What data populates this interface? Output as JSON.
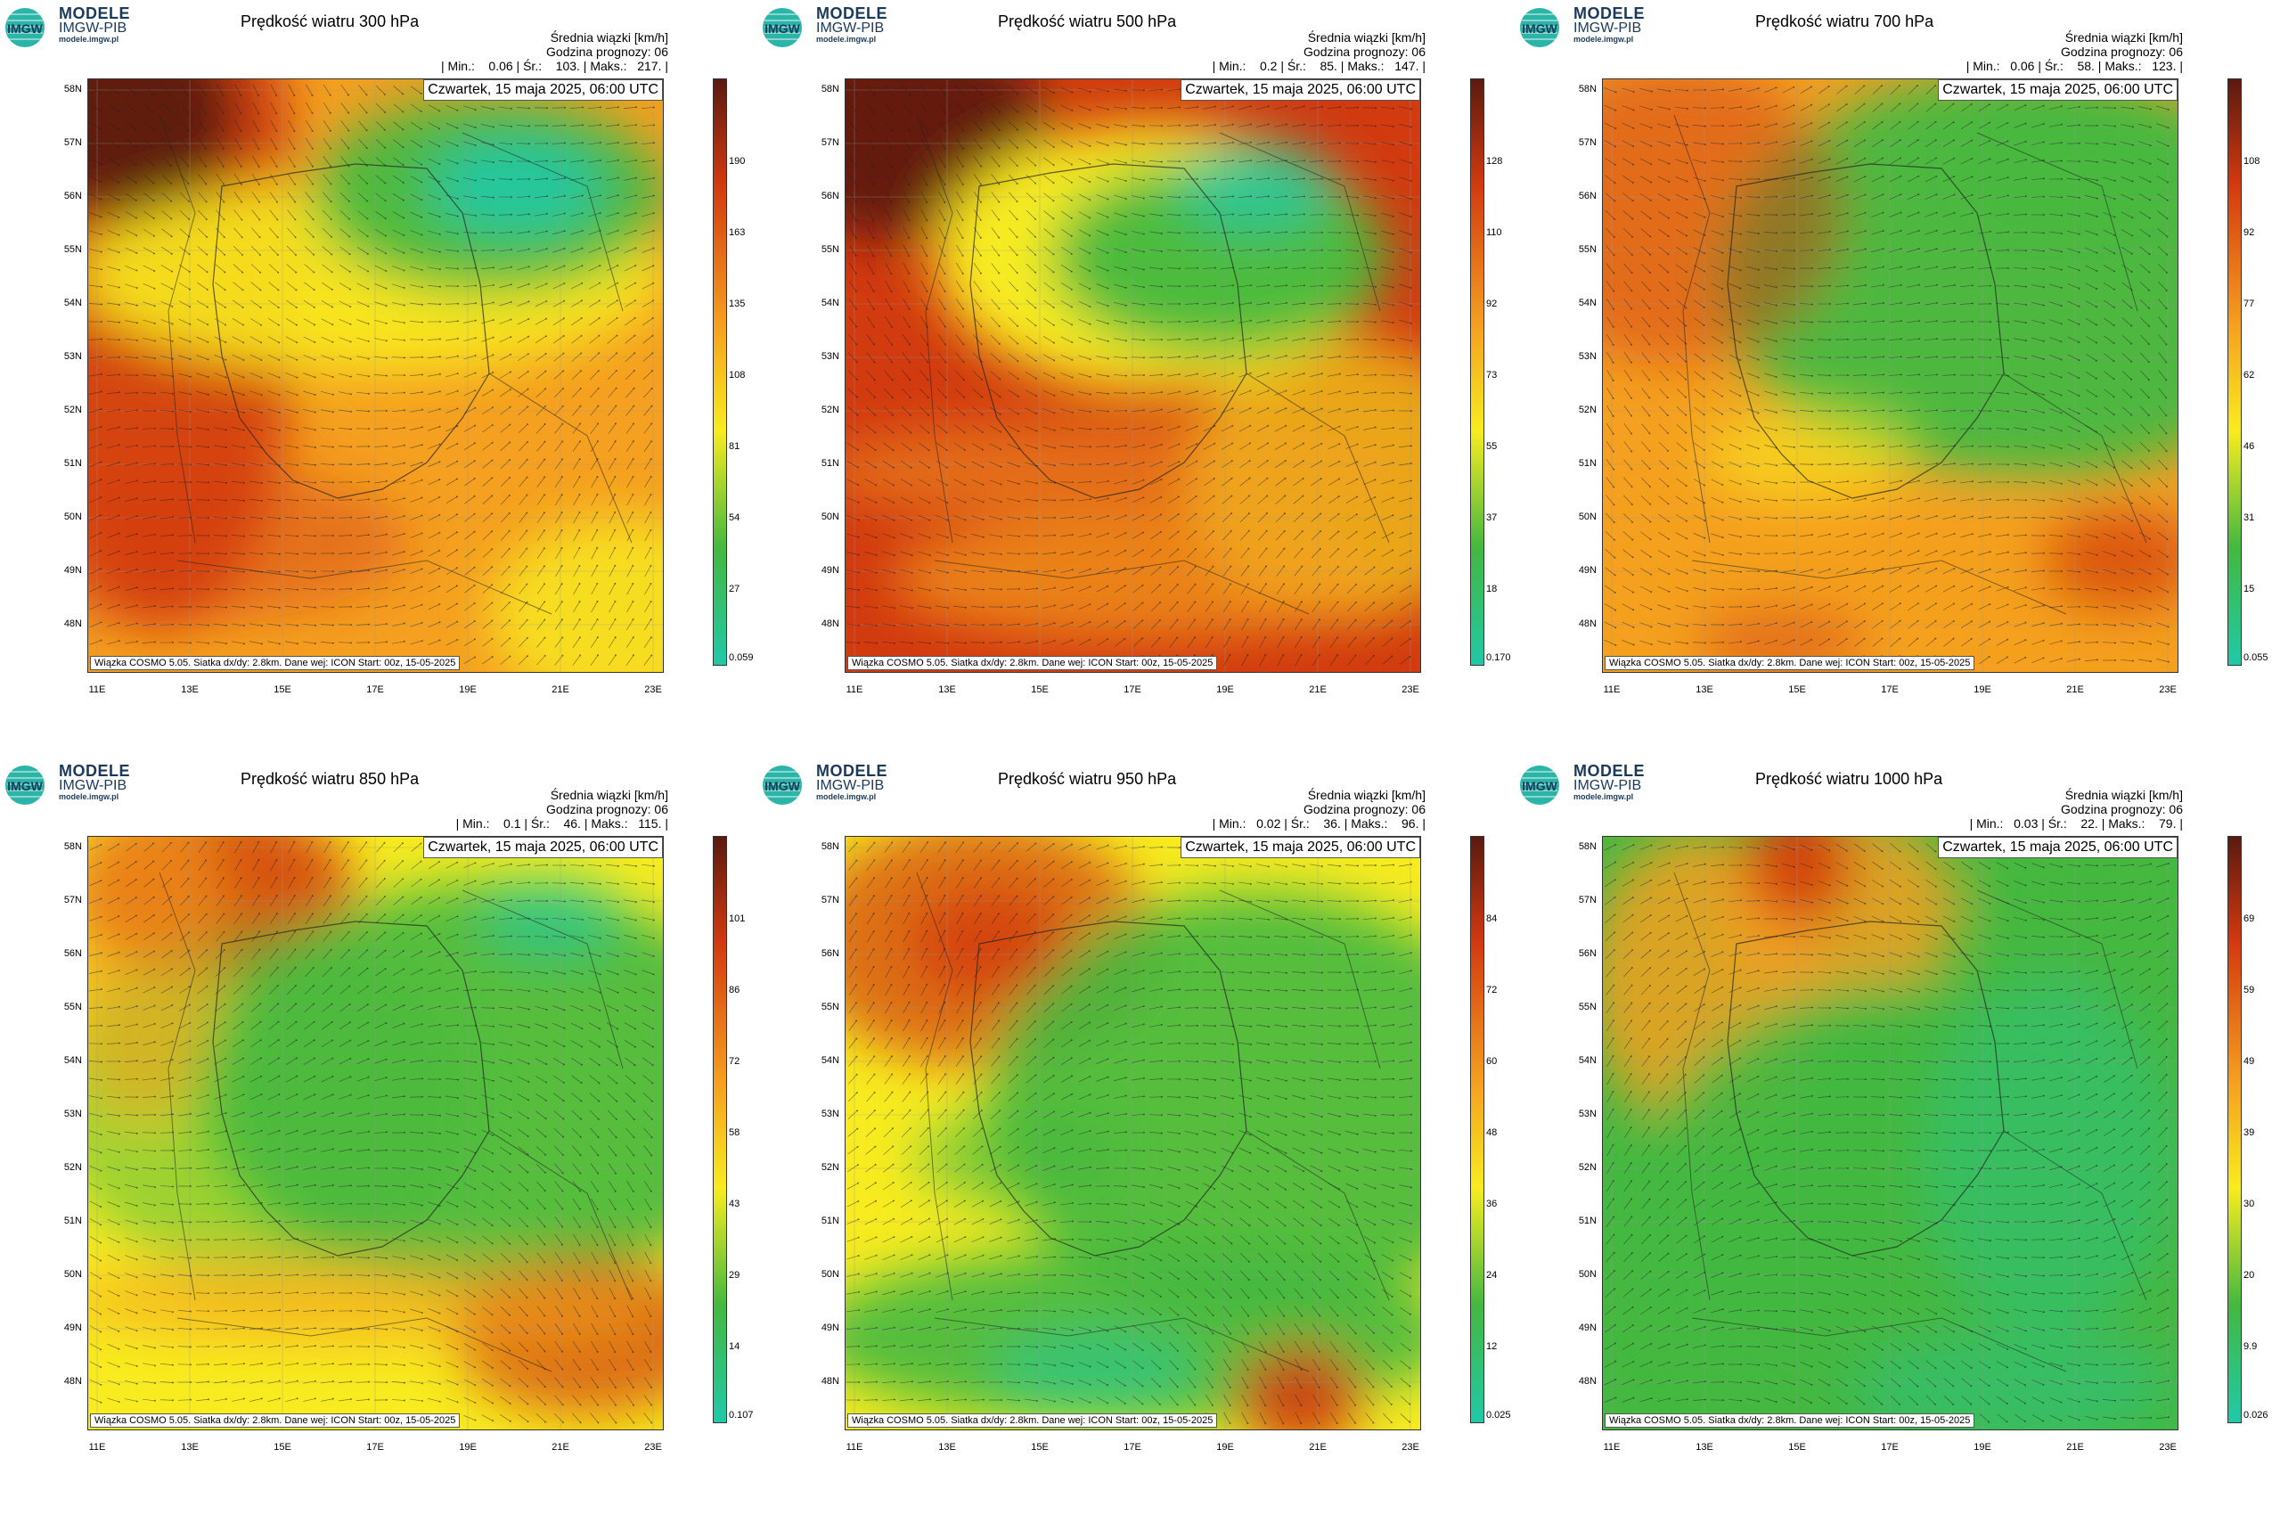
{
  "brand": {
    "line1": "MODELE",
    "line2": "IMGW-PIB",
    "line3": "modele.imgw.pl",
    "logo_text": "IMGW"
  },
  "common": {
    "unit_label": "Średnia wiązki [km/h]",
    "forecast_label": "Godzina prognozy: 06",
    "date_label": "Czwartek, 15 maja 2025, 06:00 UTC",
    "credit": "Wiązka COSMO 5.05. Siatka dx/dy: 2.8km. Dane wej: ICON Start: 00z, 15-05-2025",
    "lat_labels": [
      "58N",
      "57N",
      "56N",
      "55N",
      "54N",
      "53N",
      "52N",
      "51N",
      "50N",
      "49N",
      "48N"
    ],
    "lon_labels": [
      "11E",
      "13E",
      "15E",
      "17E",
      "19E",
      "21E",
      "23E"
    ]
  },
  "colors": {
    "high": "#5a1a10",
    "mid_high": "#d23a10",
    "mid": "#f5a020",
    "low_mid": "#f8ec20",
    "low": "#44b840",
    "min": "#20c9a8"
  },
  "panels": [
    {
      "title": "Prędkość wiatru 300 hPa",
      "stats": "| Min.:    0.06 | Śr.:    103. | Maks.:   217. |",
      "colorbar": [
        "190",
        "163",
        "135",
        "108",
        "81",
        "54",
        "27",
        "0.059"
      ],
      "scheme": "p300"
    },
    {
      "title": "Prędkość wiatru 500 hPa",
      "stats": "| Min.:    0.2 | Śr.:    85. | Maks.:   147. |",
      "colorbar": [
        "128",
        "110",
        "92",
        "73",
        "55",
        "37",
        "18",
        "0.170"
      ],
      "scheme": "p500"
    },
    {
      "title": "Prędkość wiatru 700 hPa",
      "stats": "| Min.:   0.06 | Śr.:    58. | Maks.:   123. |",
      "colorbar": [
        "108",
        "92",
        "77",
        "62",
        "46",
        "31",
        "15",
        "0.055"
      ],
      "scheme": "p700"
    },
    {
      "title": "Prędkość wiatru 850 hPa",
      "stats": "| Min.:    0.1 | Śr.:    46. | Maks.:   115. |",
      "colorbar": [
        "101",
        "86",
        "72",
        "58",
        "43",
        "29",
        "14",
        "0.107"
      ],
      "scheme": "p850"
    },
    {
      "title": "Prędkość wiatru 950 hPa",
      "stats": "| Min.:   0.02 | Śr.:    36. | Maks.:    96. |",
      "colorbar": [
        "84",
        "72",
        "60",
        "48",
        "36",
        "24",
        "12",
        "0.025"
      ],
      "scheme": "p950"
    },
    {
      "title": "Prędkość wiatru 1000 hPa",
      "stats": "| Min.:   0.03 | Śr.:    22. | Maks.:    79. |",
      "colorbar": [
        "69",
        "59",
        "49",
        "39",
        "30",
        "20",
        "9.9",
        "0.026"
      ],
      "scheme": "p1000"
    }
  ]
}
